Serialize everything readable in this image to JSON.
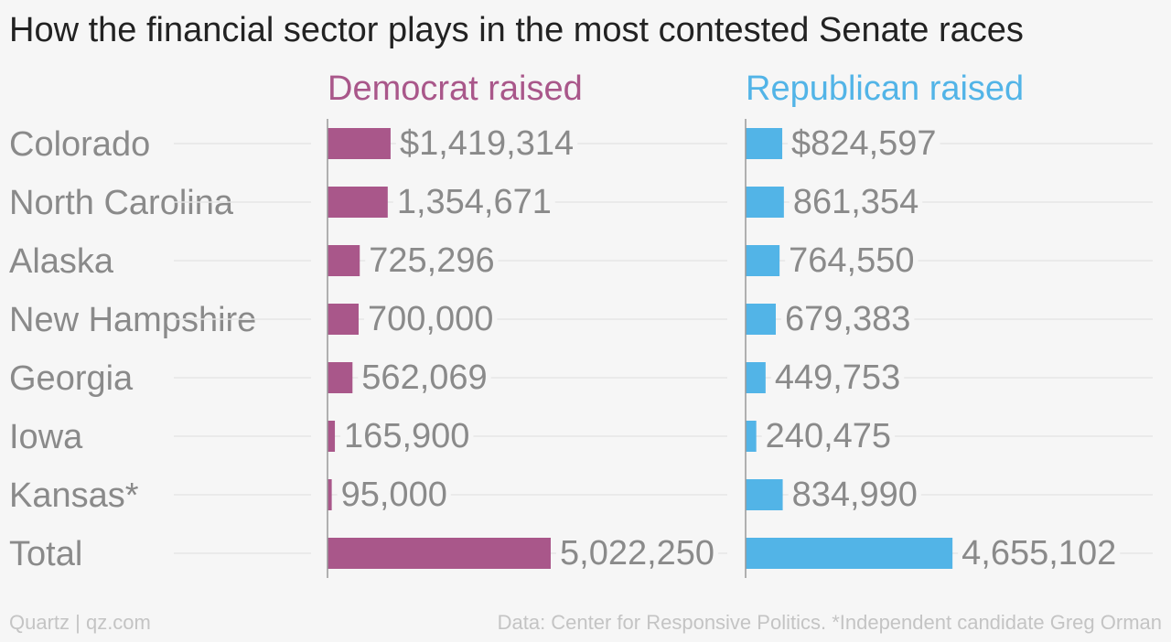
{
  "chart_data": {
    "type": "bar",
    "title": "How the financial sector plays in the most contested Senate races",
    "categories": [
      "Colorado",
      "North Carolina",
      "Alaska",
      "New Hampshire",
      "Georgia",
      "Iowa",
      "Kansas*",
      "Total"
    ],
    "series": [
      {
        "name": "Democrat raised",
        "values": [
          1419314,
          1354671,
          725296,
          700000,
          562069,
          165900,
          95000,
          5022250
        ],
        "labels": [
          "$1,419,314",
          "1,354,671",
          "725,296",
          "700,000",
          "562,069",
          "165,900",
          "95,000",
          "5,022,250"
        ],
        "color": "#a9578a"
      },
      {
        "name": "Republican raised",
        "values": [
          824597,
          861354,
          764550,
          679383,
          449753,
          240475,
          834990,
          4655102
        ],
        "labels": [
          "$824,597",
          "861,354",
          "764,550",
          "679,383",
          "449,753",
          "240,475",
          "834,990",
          "4,655,102"
        ],
        "color": "#52b4e7"
      }
    ],
    "grid": true,
    "legend": "column headers"
  },
  "footer": {
    "left": "Quartz | qz.com",
    "right": "Data: Center for Responsive Politics. *Independent candidate Greg Orman"
  }
}
